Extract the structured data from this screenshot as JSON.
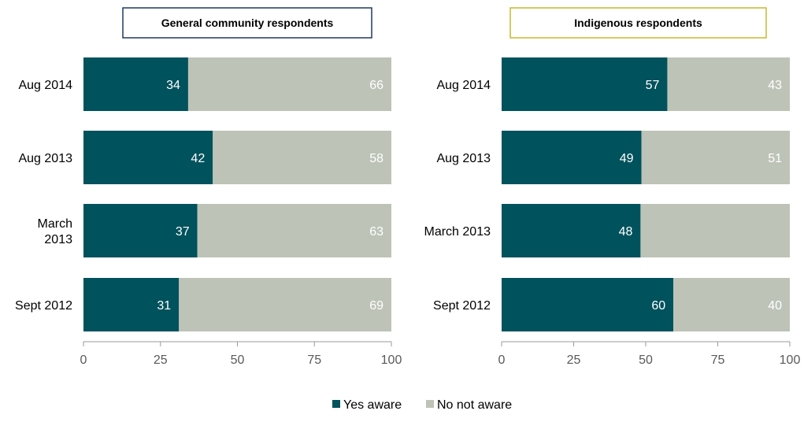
{
  "colors": {
    "yes": "#00525C",
    "no": "#BDC3B7",
    "general_border": "#1F3864",
    "indigenous_border": "#C9B92E",
    "axis": "#9A9A9A",
    "text": "#000000",
    "tick_text": "#595959",
    "bar_label": "#FFFFFF"
  },
  "legend": [
    {
      "key": "yes",
      "label": "Yes aware"
    },
    {
      "key": "no",
      "label": "No not aware"
    }
  ],
  "chart_data": [
    {
      "type": "bar",
      "orientation": "horizontal",
      "stacked": true,
      "title": "General community respondents",
      "categories": [
        [
          "Aug 2014"
        ],
        [
          "Aug 2013"
        ],
        [
          "March",
          "2013"
        ],
        [
          "Sept 2012"
        ]
      ],
      "series": [
        {
          "name": "Yes aware",
          "values": [
            34,
            42,
            37,
            31
          ]
        },
        {
          "name": "No not aware",
          "values": [
            66,
            58,
            63,
            69
          ]
        }
      ],
      "data_labels": {
        "Yes aware": [
          "34",
          "42",
          "37",
          "31"
        ],
        "No not aware": [
          "66",
          "58",
          "63",
          "69"
        ]
      },
      "xlim": [
        0,
        100
      ],
      "xticks": [
        0,
        25,
        50,
        75,
        100
      ]
    },
    {
      "type": "bar",
      "orientation": "horizontal",
      "stacked": true,
      "title": "Indigenous respondents",
      "categories": [
        [
          "Aug 2014"
        ],
        [
          "Aug 2013"
        ],
        [
          "March 2013"
        ],
        [
          "Sept 2012"
        ]
      ],
      "series": [
        {
          "name": "Yes aware",
          "values": [
            57.5,
            48.5,
            48.2,
            59.6
          ]
        },
        {
          "name": "No not aware",
          "values": [
            42.5,
            51.5,
            51.8,
            40.4
          ]
        }
      ],
      "data_labels": {
        "Yes aware": [
          "57",
          "49",
          "48",
          "60"
        ],
        "No not aware": [
          "43",
          "51",
          "",
          "40"
        ]
      },
      "xlim": [
        0,
        100
      ],
      "xticks": [
        0,
        25,
        50,
        75,
        100
      ]
    }
  ]
}
